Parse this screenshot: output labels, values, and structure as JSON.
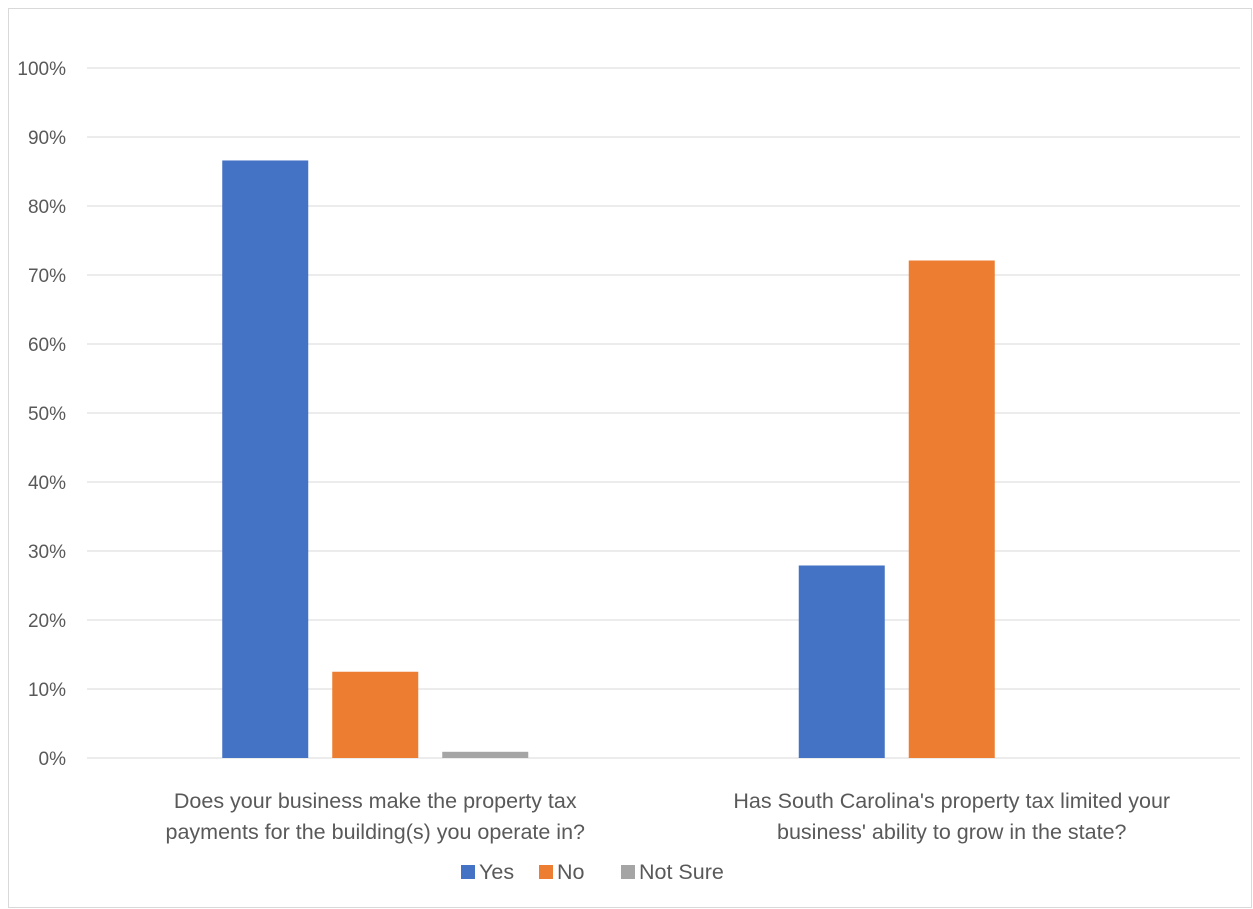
{
  "chart_data": {
    "type": "bar",
    "categories": [
      [
        "Does your business make the property tax",
        "payments for the building(s) you operate in?"
      ],
      [
        "Has South Carolina's property tax limited your",
        "business' ability to grow in the state?"
      ]
    ],
    "series": [
      {
        "name": "Yes",
        "color": "#4472c4",
        "values": [
          86.6,
          27.9
        ]
      },
      {
        "name": "No",
        "color": "#ed7d31",
        "values": [
          12.5,
          72.1
        ]
      },
      {
        "name": "Not Sure",
        "color": "#a5a5a5",
        "values": [
          0.9,
          0
        ]
      }
    ],
    "y_ticks": [
      "0%",
      "10%",
      "20%",
      "30%",
      "40%",
      "50%",
      "60%",
      "70%",
      "80%",
      "90%",
      "100%"
    ],
    "ylim": [
      0,
      100
    ],
    "y_unit": "%",
    "grid": true,
    "legend_position": "bottom"
  }
}
